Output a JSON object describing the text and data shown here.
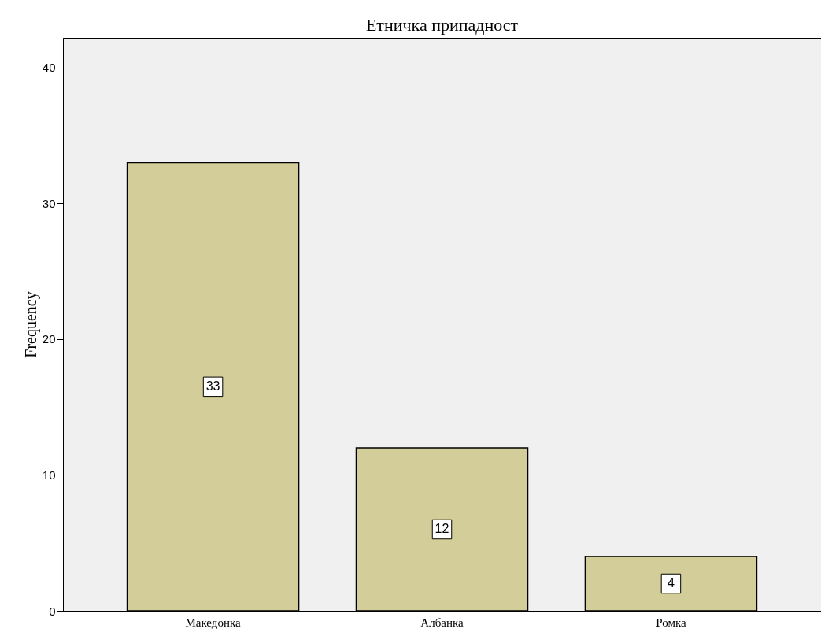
{
  "chart_data": {
    "type": "bar",
    "title": "Етничка припадност",
    "ylabel": "Frequency",
    "categories": [
      "Македонка",
      "Албанка",
      "Ромка"
    ],
    "values": [
      33,
      12,
      4
    ],
    "color": "#d3ce99",
    "ylim": [
      0,
      42.2
    ],
    "yticks": [
      0,
      10,
      20,
      30,
      40
    ],
    "grid": false,
    "data_labels": true
  }
}
